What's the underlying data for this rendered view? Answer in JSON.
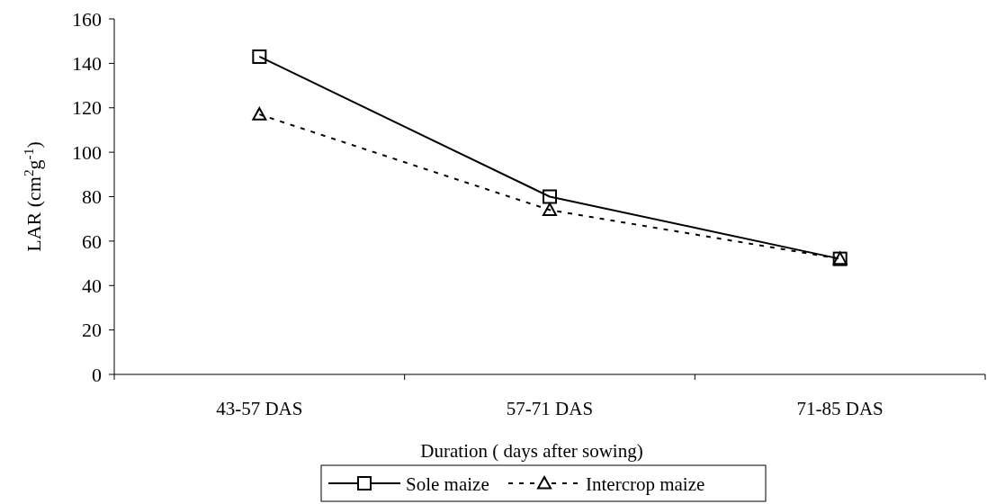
{
  "chart_data": {
    "type": "line",
    "xlabel": "Duration ( days after sowing)",
    "ylabel": "LAR (cm$^{2}$g$^{-1}$)",
    "categories": [
      "43-57 DAS",
      "57-71 DAS",
      "71-85 DAS"
    ],
    "series": [
      {
        "name": "Sole maize",
        "color": "#000000",
        "values": [
          143,
          80,
          52
        ],
        "marker": "square",
        "line_style": "solid"
      },
      {
        "name": "Intercrop maize",
        "color": "#000000",
        "values": [
          117,
          74,
          52
        ],
        "marker": "triangle",
        "line_style": "dashed"
      }
    ],
    "ylim": [
      0,
      160
    ],
    "yticks": [
      0,
      20,
      40,
      60,
      80,
      100,
      120,
      140,
      160
    ],
    "grid": false,
    "legend": "bottom"
  }
}
